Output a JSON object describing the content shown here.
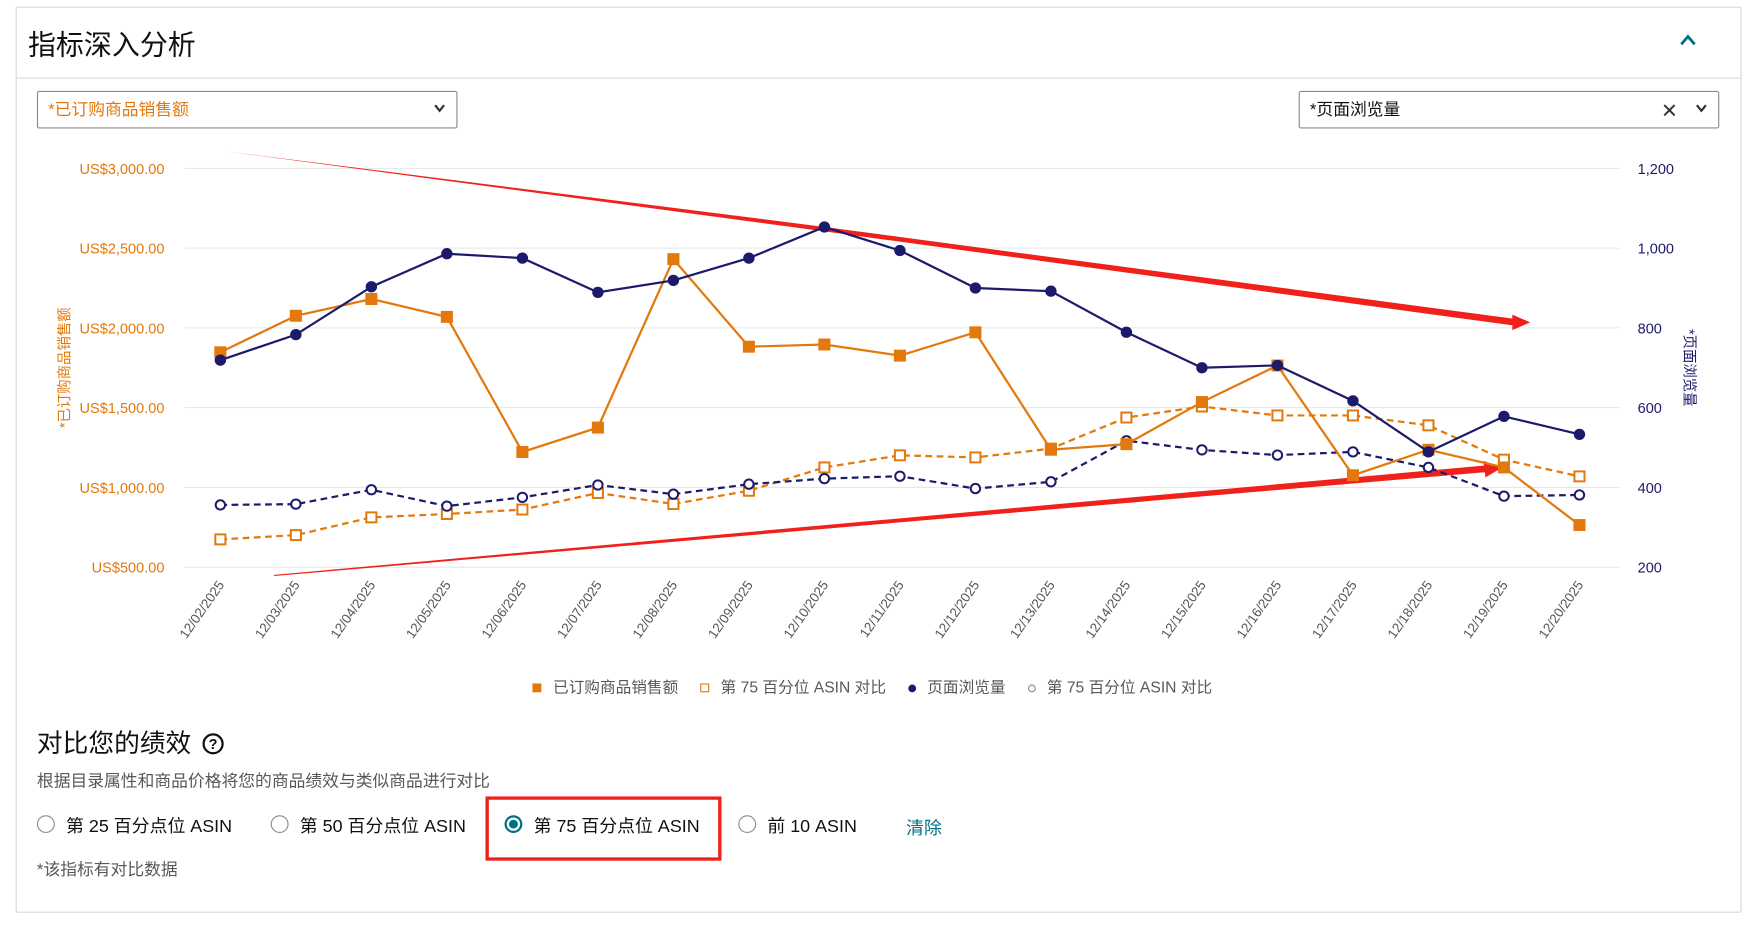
{
  "header": {
    "title": "指标深入分析"
  },
  "left_select": {
    "value": "*已订购商品销售额"
  },
  "right_select": {
    "value": "*页面浏览量"
  },
  "chart_data": {
    "type": "line",
    "x": [
      "12/02/2025",
      "12/03/2025",
      "12/04/2025",
      "12/05/2025",
      "12/06/2025",
      "12/07/2025",
      "12/08/2025",
      "12/09/2025",
      "12/10/2025",
      "12/11/2025",
      "12/12/2025",
      "12/13/2025",
      "12/14/2025",
      "12/15/2025",
      "12/16/2025",
      "12/17/2025",
      "12/18/2025",
      "12/19/2025",
      "12/20/2025"
    ],
    "ylabel_left": "*已订购商品销售额",
    "ylabel_right": "*页面浏览量",
    "ylim_left": [
      500,
      3000
    ],
    "ylim_right": [
      200,
      1200
    ],
    "yticks_left": [
      "US$500.00",
      "US$1,000.00",
      "US$1,500.00",
      "US$2,000.00",
      "US$2,500.00",
      "US$3,000.00"
    ],
    "yticks_left_values": [
      500,
      1000,
      1500,
      2000,
      2500,
      3000
    ],
    "yticks_right": [
      "200",
      "400",
      "600",
      "800",
      "1,000",
      "1,200"
    ],
    "yticks_right_values": [
      200,
      400,
      600,
      800,
      1000,
      1200
    ],
    "grid": true,
    "legend_position": "bottom",
    "series": [
      {
        "name": "已订购商品销售额",
        "axis": "left",
        "color": "#e3780c",
        "marker": "square-filled",
        "dash": false,
        "values": [
          1847,
          2076,
          2181,
          2069,
          1222,
          1375,
          2431,
          1882,
          1896,
          1826,
          1972,
          1236,
          1271,
          1535,
          1764,
          1076,
          1236,
          1125,
          764
        ]
      },
      {
        "name": "第 75 百分位 ASIN 对比",
        "axis": "left",
        "color": "#e3780c",
        "marker": "square-open",
        "dash": true,
        "values": [
          674,
          701,
          812,
          833,
          861,
          965,
          896,
          979,
          1125,
          1201,
          1188,
          1243,
          1438,
          1507,
          1451,
          1451,
          1389,
          1174,
          1069
        ]
      },
      {
        "name": "页面浏览量",
        "axis": "right",
        "color": "#1d1a6b",
        "marker": "circle-filled",
        "dash": false,
        "values": [
          719,
          783,
          903,
          986,
          975,
          889,
          919,
          975,
          1053,
          994,
          900,
          892,
          789,
          700,
          706,
          617,
          489,
          578,
          533
        ]
      },
      {
        "name": "第 75 百分位 ASIN 对比",
        "axis": "right",
        "color": "#1d1a6b",
        "marker": "circle-open",
        "dash": true,
        "values": [
          356,
          358,
          394,
          353,
          375,
          406,
          383,
          408,
          422,
          428,
          397,
          414,
          517,
          494,
          481,
          489,
          450,
          378,
          381
        ]
      }
    ]
  },
  "compare": {
    "title": "对比您的绩效",
    "help_icon": "?",
    "description": "根据目录属性和商品价格将您的商品绩效与类似商品进行对比",
    "options": [
      {
        "label": "第 25 百分点位 ASIN",
        "selected": false
      },
      {
        "label": "第 50 百分点位 ASIN",
        "selected": false
      },
      {
        "label": "第 75 百分点位 ASIN",
        "selected": true
      },
      {
        "label": "前 10 ASIN",
        "selected": false
      }
    ],
    "clear_label": "清除",
    "note": "*该指标有对比数据"
  }
}
